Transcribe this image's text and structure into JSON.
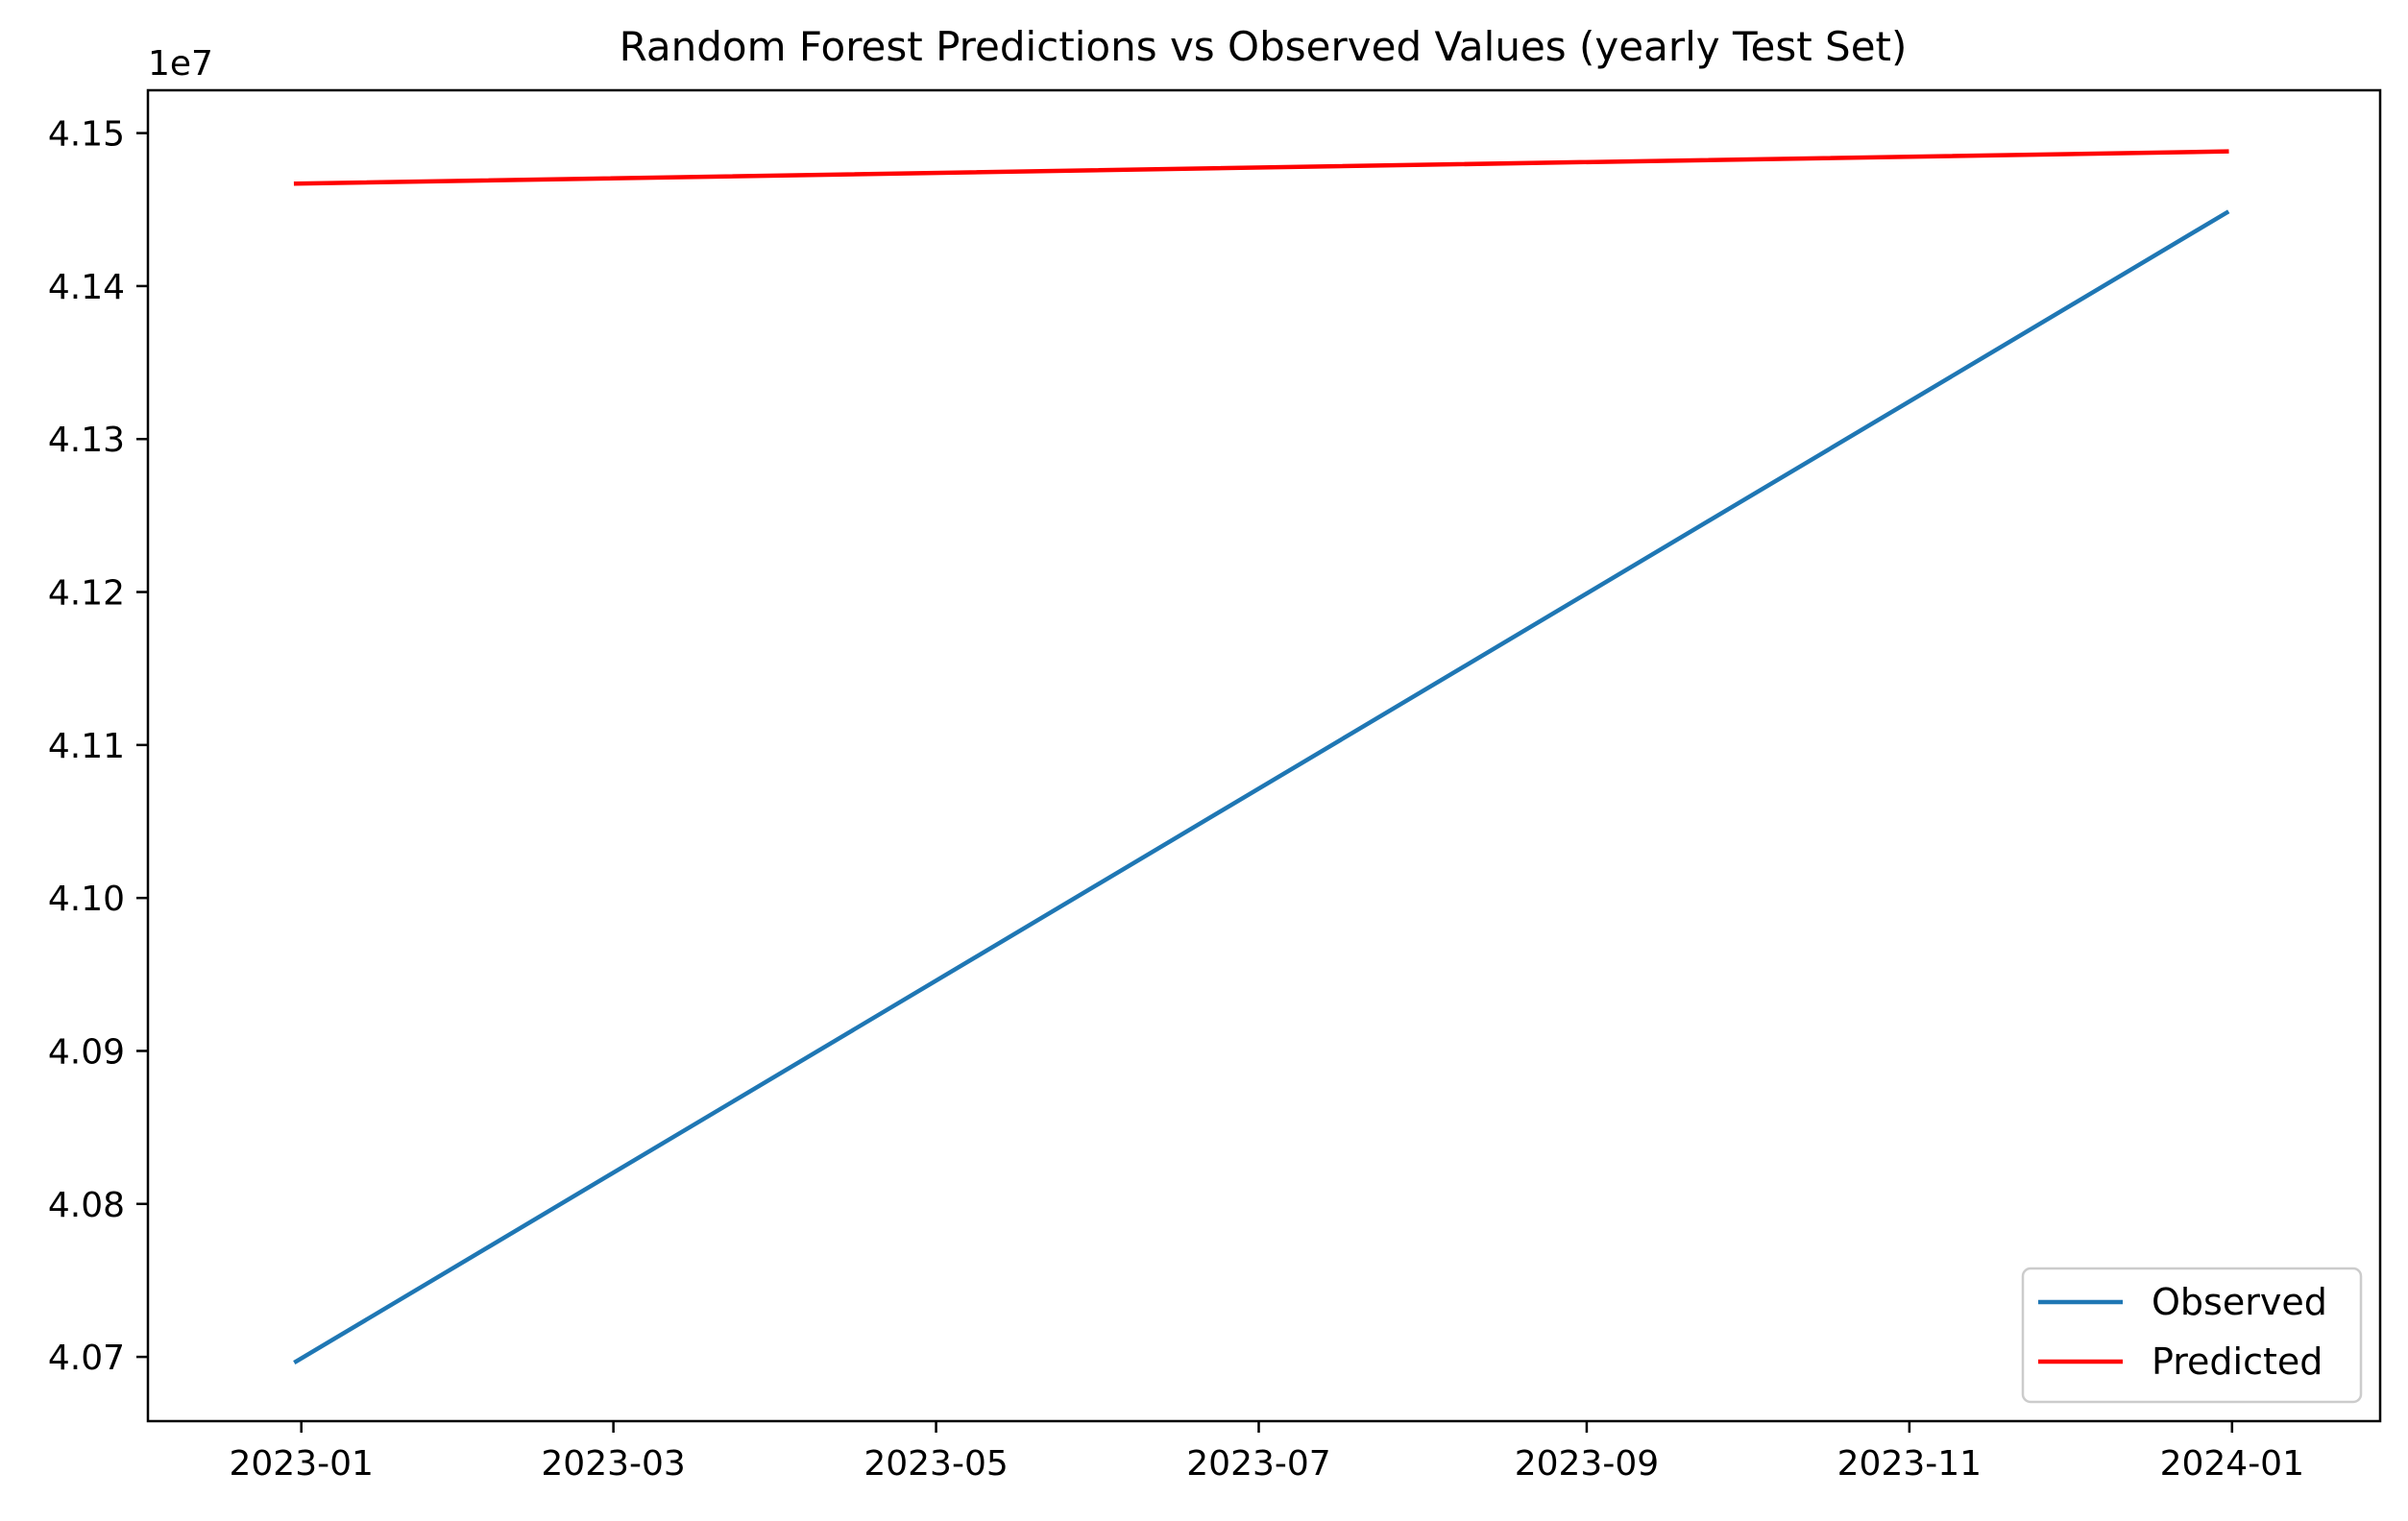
{
  "chart_data": {
    "type": "line",
    "title": "Random Forest Predictions vs Observed Values (yearly Test Set)",
    "xlabel": "",
    "ylabel": "",
    "y_offset_label": "1e7",
    "x_ticks": [
      "2023-01",
      "2023-03",
      "2023-05",
      "2023-07",
      "2023-09",
      "2023-11",
      "2024-01"
    ],
    "y_ticks": [
      "4.07",
      "4.08",
      "4.09",
      "4.10",
      "4.11",
      "4.12",
      "4.13",
      "4.14",
      "4.15"
    ],
    "xlim": [
      "2022-12-03",
      "2024-01-29"
    ],
    "ylim": [
      40658000,
      41528000
    ],
    "series": [
      {
        "name": "Observed",
        "color": "#1f77b4",
        "x": [
          "2022-12-31",
          "2023-12-31"
        ],
        "y": [
          40697000,
          41448000
        ]
      },
      {
        "name": "Predicted",
        "color": "#ff0000",
        "x": [
          "2022-12-31",
          "2023-12-31"
        ],
        "y": [
          41467000,
          41488000
        ]
      }
    ],
    "grid": false,
    "legend_position": "lower-right"
  }
}
